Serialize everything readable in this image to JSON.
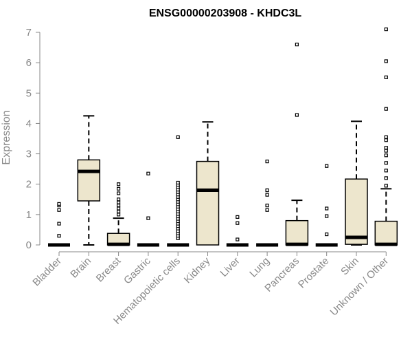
{
  "chart_data": {
    "type": "boxplot",
    "title": "ENSG00000203908 - KHDC3L",
    "ylabel": "Expression",
    "xlabel": "",
    "ylim": [
      0,
      7.2
    ],
    "yticks": [
      0,
      1,
      2,
      3,
      4,
      5,
      6,
      7
    ],
    "box_fill": "#ede6cd",
    "categories": [
      "Bladder",
      "Brain",
      "Breast",
      "Gastric",
      "Hematopoietic cells",
      "Kidney",
      "Liver",
      "Lung",
      "Pancreas",
      "Prostate",
      "Skin",
      "Unknown / Other"
    ],
    "boxes": [
      {
        "q1": 0,
        "median": 0,
        "q3": 0,
        "whisker_low": 0,
        "whisker_high": 0,
        "outliers": [
          0.3,
          0.7,
          1.15,
          1.3,
          1.35
        ]
      },
      {
        "q1": 1.45,
        "median": 2.42,
        "q3": 2.8,
        "whisker_low": 0,
        "whisker_high": 4.25,
        "outliers": []
      },
      {
        "q1": 0,
        "median": 0.02,
        "q3": 0.38,
        "whisker_low": 0,
        "whisker_high": 0.88,
        "outliers": [
          1.0,
          1.1,
          1.2,
          1.3,
          1.4,
          1.5,
          1.7,
          1.85,
          2.0
        ]
      },
      {
        "q1": 0,
        "median": 0,
        "q3": 0,
        "whisker_low": 0,
        "whisker_high": 0,
        "outliers": [
          0.88,
          2.35
        ]
      },
      {
        "q1": 0,
        "median": 0,
        "q3": 0,
        "whisker_low": 0,
        "whisker_high": 0,
        "outliers": [
          0.22,
          0.3,
          0.38,
          0.46,
          0.54,
          0.62,
          0.7,
          0.78,
          0.86,
          0.94,
          1.02,
          1.1,
          1.18,
          1.26,
          1.34,
          1.42,
          1.5,
          1.58,
          1.66,
          1.74,
          1.82,
          1.9,
          1.98,
          2.05,
          3.55
        ]
      },
      {
        "q1": 0,
        "median": 1.8,
        "q3": 2.75,
        "whisker_low": 0,
        "whisker_high": 4.05,
        "outliers": []
      },
      {
        "q1": 0,
        "median": 0,
        "q3": 0,
        "whisker_low": 0,
        "whisker_high": 0,
        "outliers": [
          0.18,
          0.72,
          0.92
        ]
      },
      {
        "q1": 0,
        "median": 0,
        "q3": 0,
        "whisker_low": 0,
        "whisker_high": 0,
        "outliers": [
          1.15,
          1.3,
          1.65,
          1.8,
          2.75
        ]
      },
      {
        "q1": 0,
        "median": 0.02,
        "q3": 0.8,
        "whisker_low": 0,
        "whisker_high": 1.47,
        "outliers": [
          4.28,
          6.6
        ]
      },
      {
        "q1": 0,
        "median": 0,
        "q3": 0,
        "whisker_low": 0,
        "whisker_high": 0,
        "outliers": [
          0.35,
          0.95,
          1.2,
          2.6
        ]
      },
      {
        "q1": 0.02,
        "median": 0.25,
        "q3": 2.17,
        "whisker_low": 0,
        "whisker_high": 4.07,
        "outliers": []
      },
      {
        "q1": 0,
        "median": 0.02,
        "q3": 0.78,
        "whisker_low": 0,
        "whisker_high": 1.85,
        "outliers": [
          1.95,
          2.2,
          2.45,
          2.7,
          2.95,
          3.1,
          3.2,
          3.45,
          3.55,
          4.48,
          5.52,
          6.05,
          7.1
        ]
      }
    ]
  }
}
